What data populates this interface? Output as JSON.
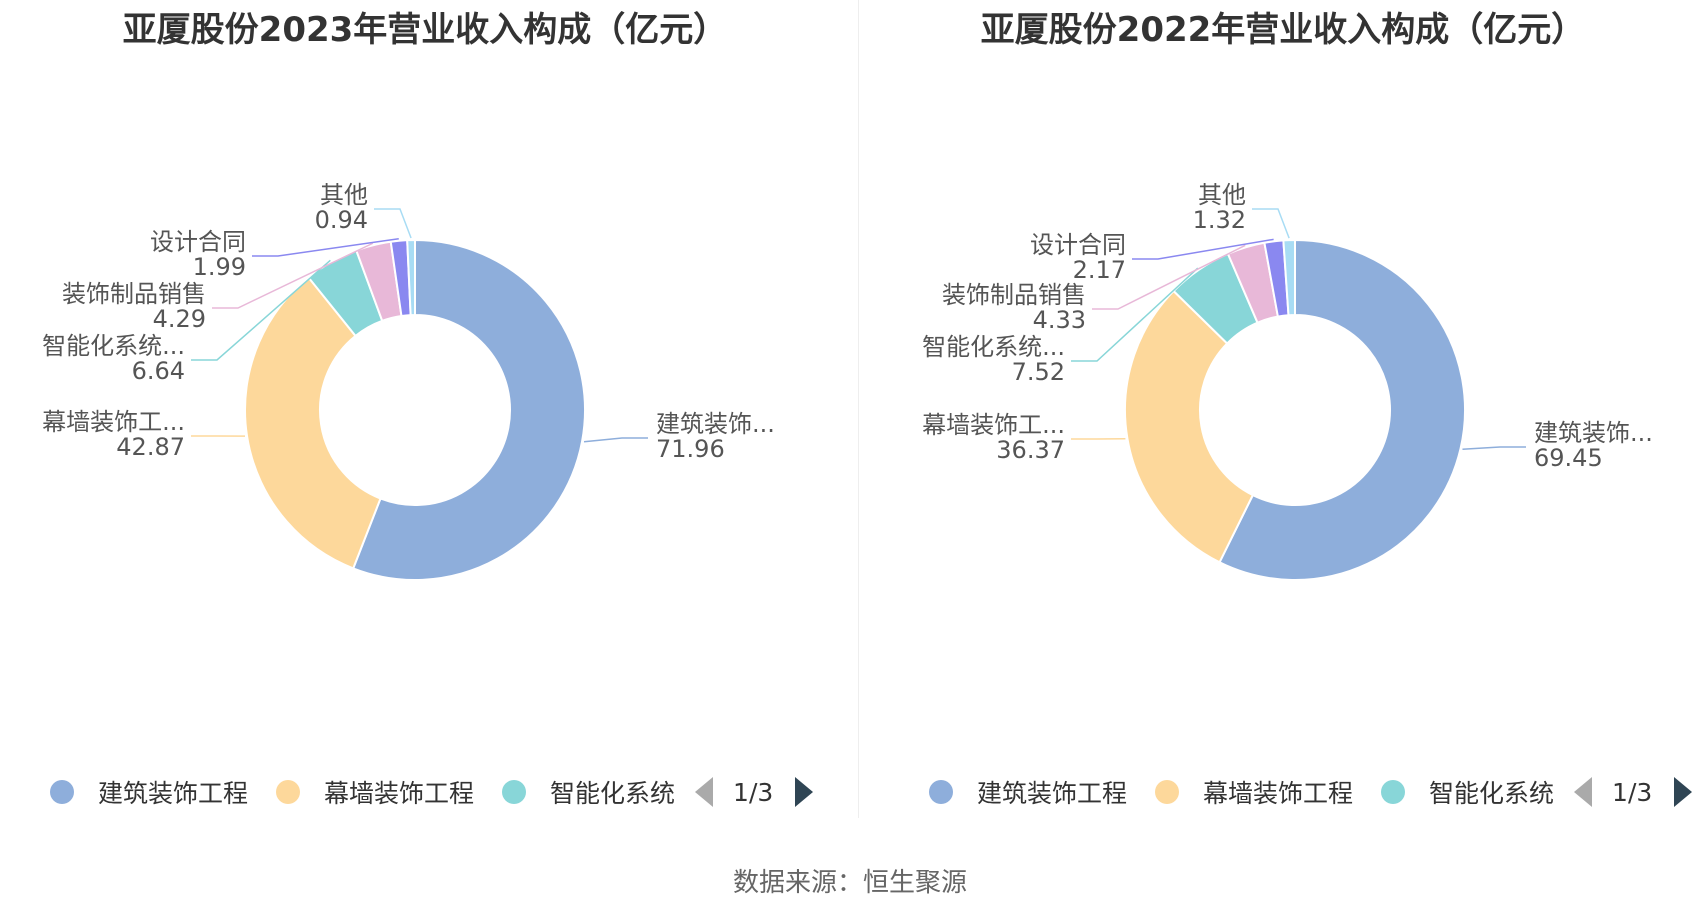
{
  "source_text": "数据来源：恒生聚源",
  "colors": [
    "#8eaedb",
    "#fdd89b",
    "#88d6d8",
    "#e8b8d8",
    "#8a88f0",
    "#a8dcf4"
  ],
  "chart_data": [
    {
      "type": "pie",
      "variant": "donut",
      "title": "亚厦股份2023年营业收入构成（亿元）",
      "categories": [
        "建筑装饰工程",
        "幕墙装饰工程",
        "智能化系统",
        "装饰制品销售",
        "设计合同",
        "其他"
      ],
      "labels": [
        "建筑装饰...",
        "幕墙装饰工...",
        "智能化系统...",
        "装饰制品销售",
        "设计合同",
        "其他"
      ],
      "values": [
        71.96,
        42.87,
        6.64,
        4.29,
        1.99,
        0.94
      ],
      "value_labels": [
        "71.96",
        "42.87",
        "6.64",
        "4.29",
        "1.99",
        "0.94"
      ],
      "legend": {
        "items": [
          "建筑装饰工程",
          "幕墙装饰工程",
          "智能化系统"
        ],
        "page": "1/3",
        "placement": "bottom"
      }
    },
    {
      "type": "pie",
      "variant": "donut",
      "title": "亚厦股份2022年营业收入构成（亿元）",
      "categories": [
        "建筑装饰工程",
        "幕墙装饰工程",
        "智能化系统",
        "装饰制品销售",
        "设计合同",
        "其他"
      ],
      "labels": [
        "建筑装饰...",
        "幕墙装饰工...",
        "智能化系统...",
        "装饰制品销售",
        "设计合同",
        "其他"
      ],
      "values": [
        69.45,
        36.37,
        7.52,
        4.33,
        2.17,
        1.32
      ],
      "value_labels": [
        "69.45",
        "36.37",
        "7.52",
        "4.33",
        "2.17",
        "1.32"
      ],
      "legend": {
        "items": [
          "建筑装饰工程",
          "幕墙装饰工程",
          "智能化系统"
        ],
        "page": "1/3",
        "placement": "bottom"
      }
    }
  ]
}
